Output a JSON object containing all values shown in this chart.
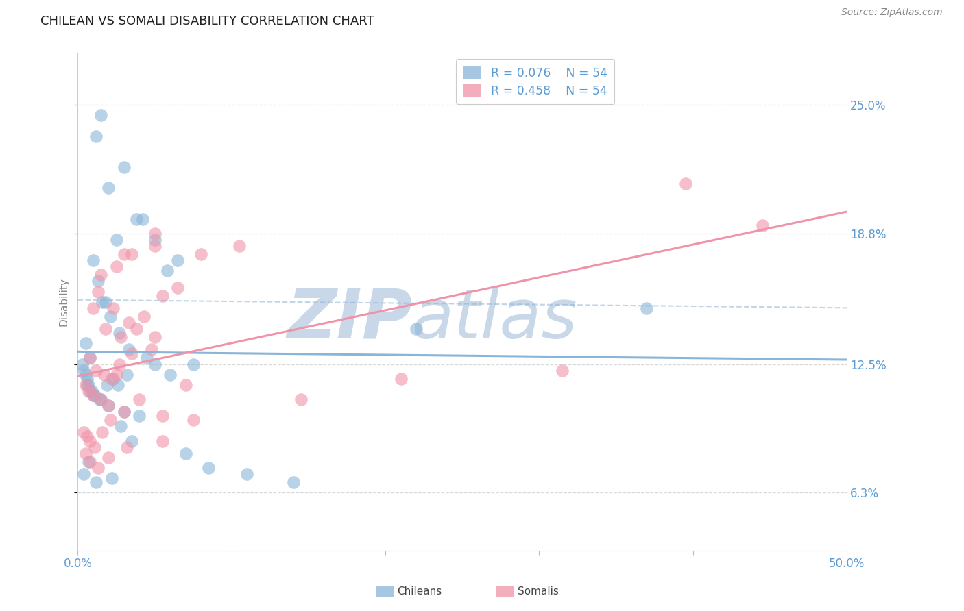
{
  "title": "CHILEAN VS SOMALI DISABILITY CORRELATION CHART",
  "source": "Source: ZipAtlas.com",
  "ylabel": "Disability",
  "legend_r_n": [
    {
      "R": "0.076",
      "N": "54",
      "color": "#8ab4d8"
    },
    {
      "R": "0.458",
      "N": "54",
      "color": "#f093a8"
    }
  ],
  "y_ticks": [
    0.063,
    0.125,
    0.188,
    0.25
  ],
  "y_tick_labels": [
    "6.3%",
    "12.5%",
    "18.8%",
    "25.0%"
  ],
  "xlim": [
    0.0,
    50.0
  ],
  "ylim": [
    0.035,
    0.275
  ],
  "blue_color": "#8ab4d8",
  "pink_color": "#f093a8",
  "background_color": "#ffffff",
  "grid_color": "#d8d8d8",
  "axis_color": "#5b9bd5",
  "watermark_color": "#c8d8e8",
  "chilean_x": [
    1.2,
    2.0,
    3.8,
    5.0,
    6.5,
    1.5,
    3.0,
    4.2,
    5.8,
    2.5,
    1.0,
    1.3,
    1.6,
    2.1,
    2.7,
    3.3,
    4.5,
    1.8,
    0.5,
    0.8,
    0.3,
    0.4,
    0.6,
    0.7,
    0.9,
    1.1,
    1.4,
    1.9,
    2.3,
    2.6,
    0.5,
    0.6,
    0.8,
    1.0,
    1.5,
    2.0,
    3.0,
    4.0,
    5.0,
    6.0,
    2.8,
    3.5,
    7.0,
    8.5,
    11.0,
    14.0,
    0.4,
    0.7,
    1.2,
    2.2,
    3.2,
    7.5,
    22.0,
    37.0
  ],
  "chilean_y": [
    0.235,
    0.21,
    0.195,
    0.185,
    0.175,
    0.245,
    0.22,
    0.195,
    0.17,
    0.185,
    0.175,
    0.165,
    0.155,
    0.148,
    0.14,
    0.132,
    0.128,
    0.155,
    0.135,
    0.128,
    0.125,
    0.122,
    0.118,
    0.115,
    0.112,
    0.11,
    0.108,
    0.115,
    0.118,
    0.115,
    0.12,
    0.115,
    0.112,
    0.11,
    0.108,
    0.105,
    0.102,
    0.1,
    0.125,
    0.12,
    0.095,
    0.088,
    0.082,
    0.075,
    0.072,
    0.068,
    0.072,
    0.078,
    0.068,
    0.07,
    0.12,
    0.125,
    0.142,
    0.152
  ],
  "somali_x": [
    1.0,
    1.8,
    2.8,
    3.8,
    4.8,
    1.3,
    2.3,
    3.3,
    4.3,
    5.5,
    0.8,
    1.2,
    1.7,
    2.2,
    2.7,
    3.5,
    5.0,
    6.5,
    8.0,
    10.5,
    1.5,
    2.5,
    3.5,
    5.0,
    0.5,
    0.7,
    1.0,
    1.5,
    2.0,
    2.5,
    0.4,
    0.6,
    0.8,
    1.1,
    1.6,
    2.1,
    3.0,
    4.0,
    5.5,
    7.0,
    0.5,
    0.8,
    1.3,
    2.0,
    3.2,
    5.5,
    7.5,
    14.5,
    21.0,
    31.5,
    3.0,
    5.0,
    39.5,
    44.5
  ],
  "somali_y": [
    0.152,
    0.142,
    0.138,
    0.142,
    0.132,
    0.16,
    0.152,
    0.145,
    0.148,
    0.158,
    0.128,
    0.122,
    0.12,
    0.118,
    0.125,
    0.13,
    0.138,
    0.162,
    0.178,
    0.182,
    0.168,
    0.172,
    0.178,
    0.188,
    0.115,
    0.112,
    0.11,
    0.108,
    0.105,
    0.12,
    0.092,
    0.09,
    0.088,
    0.085,
    0.092,
    0.098,
    0.102,
    0.108,
    0.1,
    0.115,
    0.082,
    0.078,
    0.075,
    0.08,
    0.085,
    0.088,
    0.098,
    0.108,
    0.118,
    0.122,
    0.178,
    0.182,
    0.212,
    0.192
  ]
}
